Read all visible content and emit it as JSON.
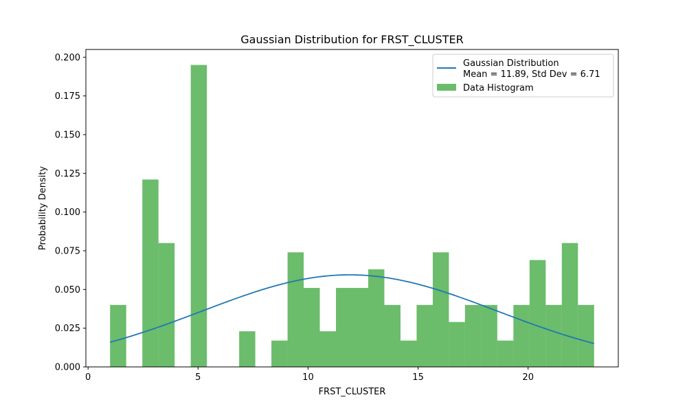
{
  "chart_data": {
    "type": "bar",
    "title": "Gaussian Distribution for FRST_CLUSTER",
    "xlabel": "FRST_CLUSTER",
    "ylabel": "Probability Density",
    "xlim": [
      -0.1,
      24.1
    ],
    "ylim": [
      0,
      0.205
    ],
    "xticks": [
      0,
      5,
      10,
      15,
      20
    ],
    "yticks": [
      0.0,
      0.025,
      0.05,
      0.075,
      0.1,
      0.125,
      0.15,
      0.175,
      0.2
    ],
    "ytick_labels": [
      "0.000",
      "0.025",
      "0.050",
      "0.075",
      "0.100",
      "0.125",
      "0.150",
      "0.175",
      "0.200"
    ],
    "bin_edges": [
      1.0,
      1.733,
      2.467,
      3.2,
      3.933,
      4.667,
      5.4,
      6.133,
      6.867,
      7.6,
      8.333,
      9.067,
      9.8,
      10.533,
      11.267,
      12.0,
      12.733,
      13.467,
      14.2,
      14.933,
      15.667,
      16.4,
      17.133,
      17.867,
      18.6,
      19.333,
      20.067,
      20.8,
      21.533,
      22.267,
      23.0
    ],
    "series": [
      {
        "name": "Gaussian Distribution\nMean = 11.89, Std Dev = 6.71",
        "kind": "line",
        "color": "#1f77b4",
        "mean": 11.89,
        "std": 6.71,
        "x_range": [
          1,
          23
        ]
      },
      {
        "name": "Data Histogram",
        "kind": "bar",
        "color": "#2ca02c",
        "opacity": 0.7,
        "values": [
          0.04,
          0.0,
          0.121,
          0.08,
          0.0,
          0.195,
          0.0,
          0.0,
          0.023,
          0.0,
          0.017,
          0.074,
          0.051,
          0.023,
          0.051,
          0.051,
          0.063,
          0.04,
          0.017,
          0.04,
          0.074,
          0.029,
          0.04,
          0.04,
          0.017,
          0.04,
          0.069,
          0.04,
          0.08,
          0.04
        ]
      }
    ],
    "grid": false,
    "legend_position": "top-right"
  }
}
